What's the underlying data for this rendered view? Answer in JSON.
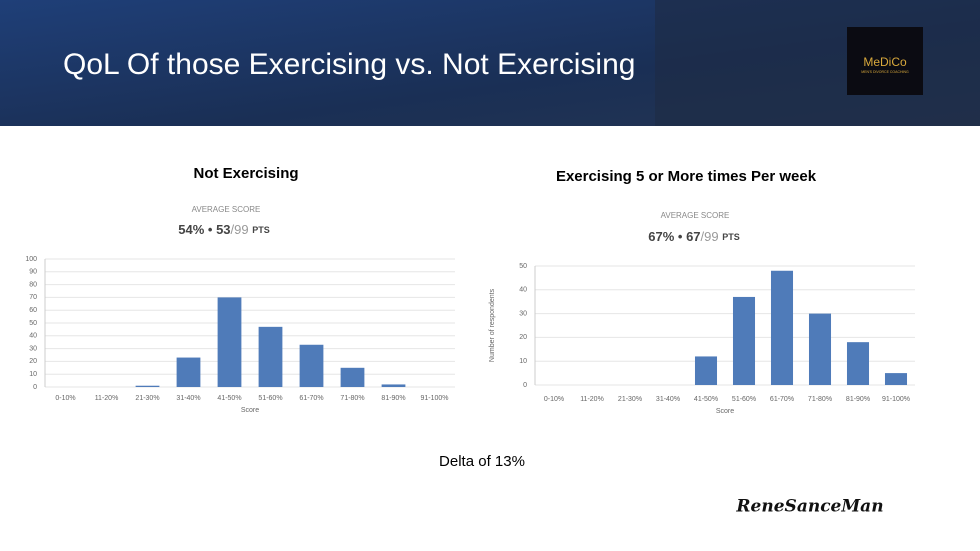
{
  "slide_title": "QoL Of those Exercising vs. Not Exercising",
  "logo": {
    "name": "MeDiCo",
    "tagline": "MEN'S DIVORCE COACHING"
  },
  "delta": "Delta of 13%",
  "signature": "ReneSanceMan",
  "chart_data": [
    {
      "type": "bar",
      "title": "Not Exercising",
      "average_label": "AVERAGE SCORE",
      "average_percent": "54%",
      "separator": "•",
      "average_points": "53",
      "points_max": "/99",
      "points_unit": "PTS",
      "x_label": "Score",
      "categories": [
        "0-10%",
        "11-20%",
        "21-30%",
        "31-40%",
        "41-50%",
        "51-60%",
        "61-70%",
        "71-80%",
        "81-90%",
        "91-100%"
      ],
      "values": [
        0,
        0,
        1,
        23,
        70,
        47,
        33,
        15,
        2,
        0
      ],
      "color": "#4f7bb9",
      "ylim": [
        0,
        100
      ],
      "yticks": [
        0,
        10,
        20,
        30,
        40,
        50,
        60,
        70,
        80,
        90,
        100
      ],
      "grid": true
    },
    {
      "type": "bar",
      "title": "Exercising 5 or More times Per week",
      "average_label": "AVERAGE SCORE",
      "average_percent": "67%",
      "separator": "•",
      "average_points": "67",
      "points_max": "/99",
      "points_unit": "PTS",
      "x_label": "Score",
      "y_label": "Number of respondents",
      "categories": [
        "0-10%",
        "11-20%",
        "21-30%",
        "31-40%",
        "41-50%",
        "51-60%",
        "61-70%",
        "71-80%",
        "81-90%",
        "91-100%"
      ],
      "values": [
        0,
        0,
        0,
        0,
        12,
        37,
        48,
        30,
        18,
        5
      ],
      "color": "#4f7bb9",
      "ylim": [
        0,
        50
      ],
      "yticks": [
        0,
        10,
        20,
        30,
        40,
        50
      ],
      "grid": true
    }
  ]
}
